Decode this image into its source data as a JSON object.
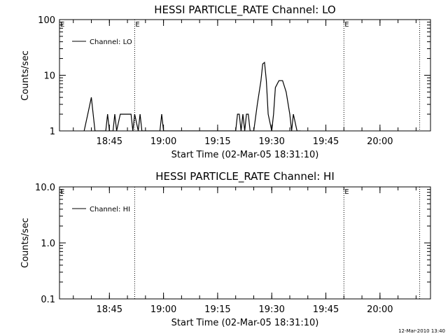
{
  "timestamp": "12-Mar-2010 13:40",
  "chart_data": [
    {
      "type": "line",
      "title": "HESSI PARTICLE_RATE Channel: LO",
      "xlabel": "Start Time (02-Mar-05 18:31:10)",
      "ylabel": "Counts/sec",
      "y_scale": "log",
      "ylim": [
        1,
        100
      ],
      "xlim": [
        "18:31:10",
        "20:14:00"
      ],
      "y_ticks": [
        {
          "v": 1,
          "label": "1"
        },
        {
          "v": 10,
          "label": "10"
        },
        {
          "v": 100,
          "label": "100"
        }
      ],
      "x_ticks": [
        "18:45",
        "19:00",
        "19:15",
        "19:30",
        "19:45",
        "20:00"
      ],
      "legend": {
        "label": "Channel: LO",
        "placement": "top-left"
      },
      "marker_label": "E",
      "markers": [
        "18:31:10",
        "18:52:00",
        "19:50:00"
      ],
      "dotted_lines": [
        "18:52:00",
        "19:50:00",
        "20:11:00"
      ],
      "series": [
        {
          "x": [
            "18:38:00",
            "18:39:00",
            "18:40:00",
            "18:40:30",
            "18:41:00",
            "18:42:00",
            "18:43:00",
            "18:44:00",
            "18:44:30",
            "18:45:00",
            "18:46:00",
            "18:46:30",
            "18:47:00",
            "18:48:00",
            "18:48:30",
            "18:49:00",
            "18:50:00",
            "18:51:00",
            "18:51:30",
            "18:52:00",
            "18:53:00",
            "18:53:30",
            "18:54:00",
            "18:55:00",
            "18:59:00",
            "18:59:30",
            "19:00:00",
            "19:20:00",
            "19:20:30",
            "19:21:00",
            "19:21:30",
            "19:22:00",
            "19:22:30",
            "19:23:00",
            "19:23:30",
            "19:24:00",
            "19:25:00",
            "19:26:00",
            "19:27:00",
            "19:27:30",
            "19:28:00",
            "19:28:30",
            "19:29:00",
            "19:30:00",
            "19:30:30",
            "19:31:00",
            "19:32:00",
            "19:33:00",
            "19:34:00",
            "19:35:00",
            "19:35:30",
            "19:36:00",
            "19:37:00",
            "19:38:00"
          ],
          "y": [
            1,
            2,
            4,
            2,
            1,
            1,
            1,
            1,
            2,
            1,
            1,
            2,
            1,
            2,
            2,
            2,
            2,
            2,
            1,
            2,
            1,
            2,
            1,
            1,
            1,
            2,
            1,
            1,
            2,
            2,
            1,
            2,
            1,
            2,
            2,
            1,
            1,
            3,
            8,
            16,
            17,
            8,
            2,
            1,
            2,
            6,
            8,
            8,
            5,
            2,
            1,
            2,
            1,
            1
          ]
        }
      ]
    },
    {
      "type": "line",
      "title": "HESSI PARTICLE_RATE Channel: HI",
      "xlabel": "Start Time (02-Mar-05 18:31:10)",
      "ylabel": "Counts/sec",
      "y_scale": "log",
      "ylim": [
        0.1,
        10
      ],
      "xlim": [
        "18:31:10",
        "20:14:00"
      ],
      "y_ticks": [
        {
          "v": 0.1,
          "label": "0.1"
        },
        {
          "v": 1,
          "label": "1.0"
        },
        {
          "v": 10,
          "label": "10.0"
        }
      ],
      "x_ticks": [
        "18:45",
        "19:00",
        "19:15",
        "19:30",
        "19:45",
        "20:00"
      ],
      "legend": {
        "label": "Channel: HI",
        "placement": "top-left"
      },
      "marker_label": "E",
      "markers": [
        "18:31:10",
        "19:50:00"
      ],
      "dotted_lines": [
        "18:52:00",
        "19:50:00",
        "20:11:00"
      ],
      "series": [
        {
          "x": [],
          "y": []
        }
      ]
    }
  ]
}
